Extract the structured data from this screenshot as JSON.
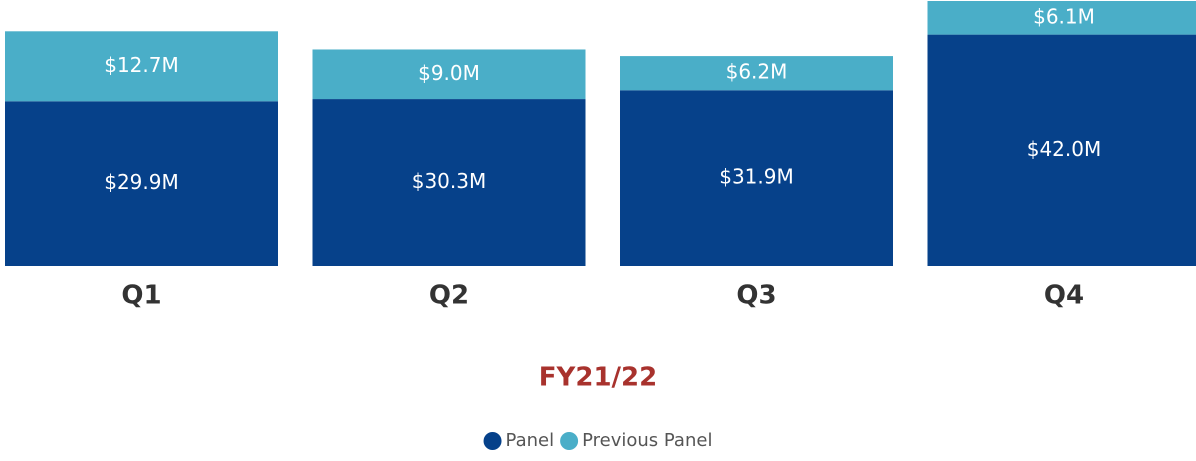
{
  "chart_data": {
    "type": "stacked_bar",
    "x_label": "FY21/22",
    "categories": [
      "Q1",
      "Q2",
      "Q3",
      "Q4"
    ],
    "series": [
      {
        "name": "Panel",
        "color": "#06418a",
        "values": [
          29.9,
          30.3,
          31.9,
          42.0
        ],
        "value_labels": [
          "$29.9M",
          "$30.3M",
          "$31.9M",
          "$42.0M"
        ]
      },
      {
        "name": "Previous Panel",
        "color": "#4aaec8",
        "values": [
          12.7,
          9.0,
          6.2,
          6.1
        ],
        "value_labels": [
          "$12.7M",
          "$9.0M",
          "$6.2M",
          "$6.1M"
        ]
      }
    ]
  }
}
